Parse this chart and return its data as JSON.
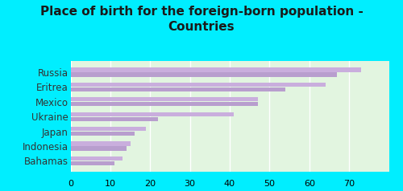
{
  "title": "Place of birth for the foreign-born population -\nCountries",
  "categories": [
    "Russia",
    "Eritrea",
    "Mexico",
    "Ukraine",
    "Japan",
    "Indonesia",
    "Bahamas"
  ],
  "values1": [
    73,
    64,
    47,
    41,
    19,
    15,
    13
  ],
  "values2": [
    67,
    54,
    47,
    22,
    16,
    14,
    11
  ],
  "bar_color1": "#c9aedd",
  "bar_color2": "#b89ece",
  "background_outer": "#00eeff",
  "background_inner": "#e2f5e0",
  "title_color": "#1a1a1a",
  "xlim": [
    0,
    80
  ],
  "xticks": [
    0,
    10,
    20,
    30,
    40,
    50,
    60,
    70
  ],
  "title_fontsize": 11,
  "tick_fontsize": 8,
  "label_fontsize": 8.5,
  "bar_height": 0.28,
  "bar_gap": 0.05,
  "figsize": [
    5.0,
    2.38
  ],
  "dpi": 100
}
